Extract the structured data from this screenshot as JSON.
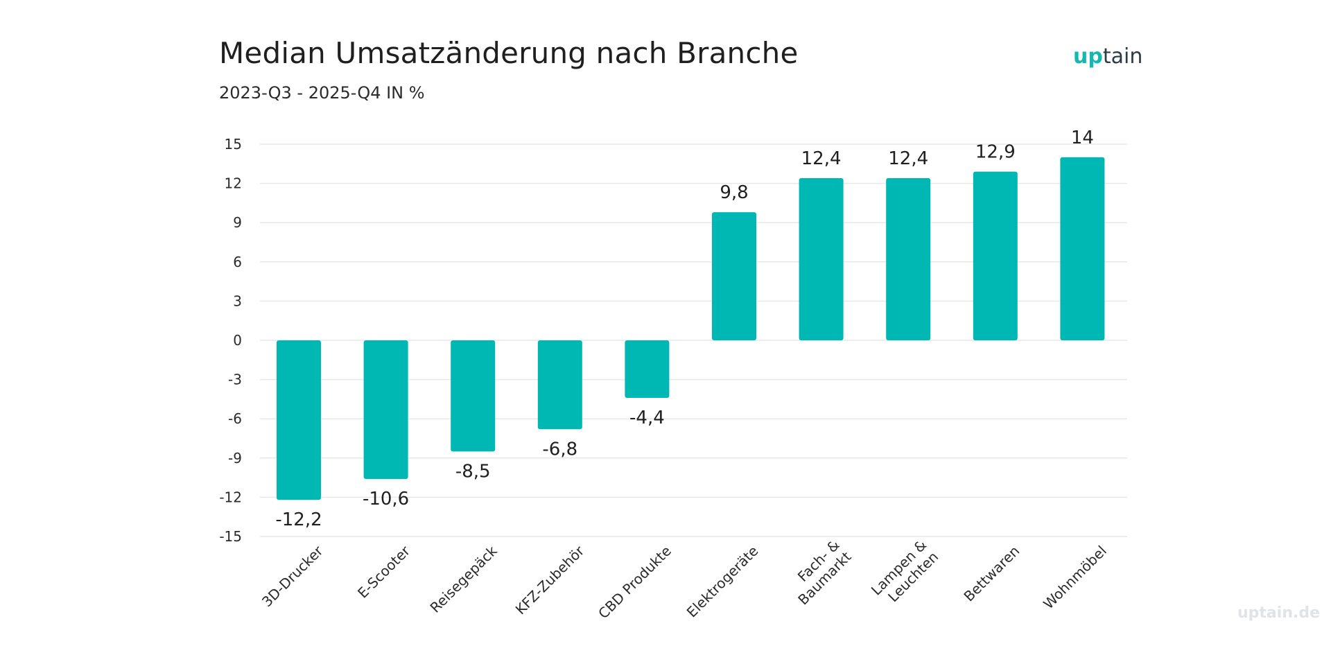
{
  "header": {
    "title": "Median Umsatzänderung nach Branche",
    "subtitle": "2023-Q3 - 2025-Q4 IN %",
    "logo_up": "up",
    "logo_rest": "tain",
    "watermark": "uptain.de"
  },
  "colors": {
    "bar": "#00b8b3",
    "grid": "#e6e8ea",
    "accent": "#14b8b1"
  },
  "chart_data": {
    "type": "bar",
    "title": "Median Umsatzänderung nach Branche",
    "subtitle": "2023-Q3 - 2025-Q4 IN %",
    "xlabel": "",
    "ylabel": "",
    "ylim": [
      -15,
      15
    ],
    "yticks": [
      15,
      12,
      9,
      6,
      3,
      0,
      -3,
      -6,
      -9,
      -12,
      -15
    ],
    "grid": true,
    "legend": "none",
    "categories": [
      [
        "3D-Drucker"
      ],
      [
        "E-Scooter"
      ],
      [
        "Reisegepäck"
      ],
      [
        "KFZ-Zubehör"
      ],
      [
        "CBD Produkte"
      ],
      [
        "Elektrogeräte"
      ],
      [
        "Fach- &",
        "Baumarkt"
      ],
      [
        "Lampen &",
        "Leuchten"
      ],
      [
        "Bettwaren"
      ],
      [
        "Wohnmöbel"
      ]
    ],
    "values": [
      -12.2,
      -10.6,
      -8.5,
      -6.8,
      -4.4,
      9.8,
      12.4,
      12.4,
      12.9,
      14
    ],
    "value_labels": [
      "-12,2",
      "-10,6",
      "-8,5",
      "-6,8",
      "-4,4",
      "9,8",
      "12,4",
      "12,4",
      "12,9",
      "14"
    ]
  }
}
